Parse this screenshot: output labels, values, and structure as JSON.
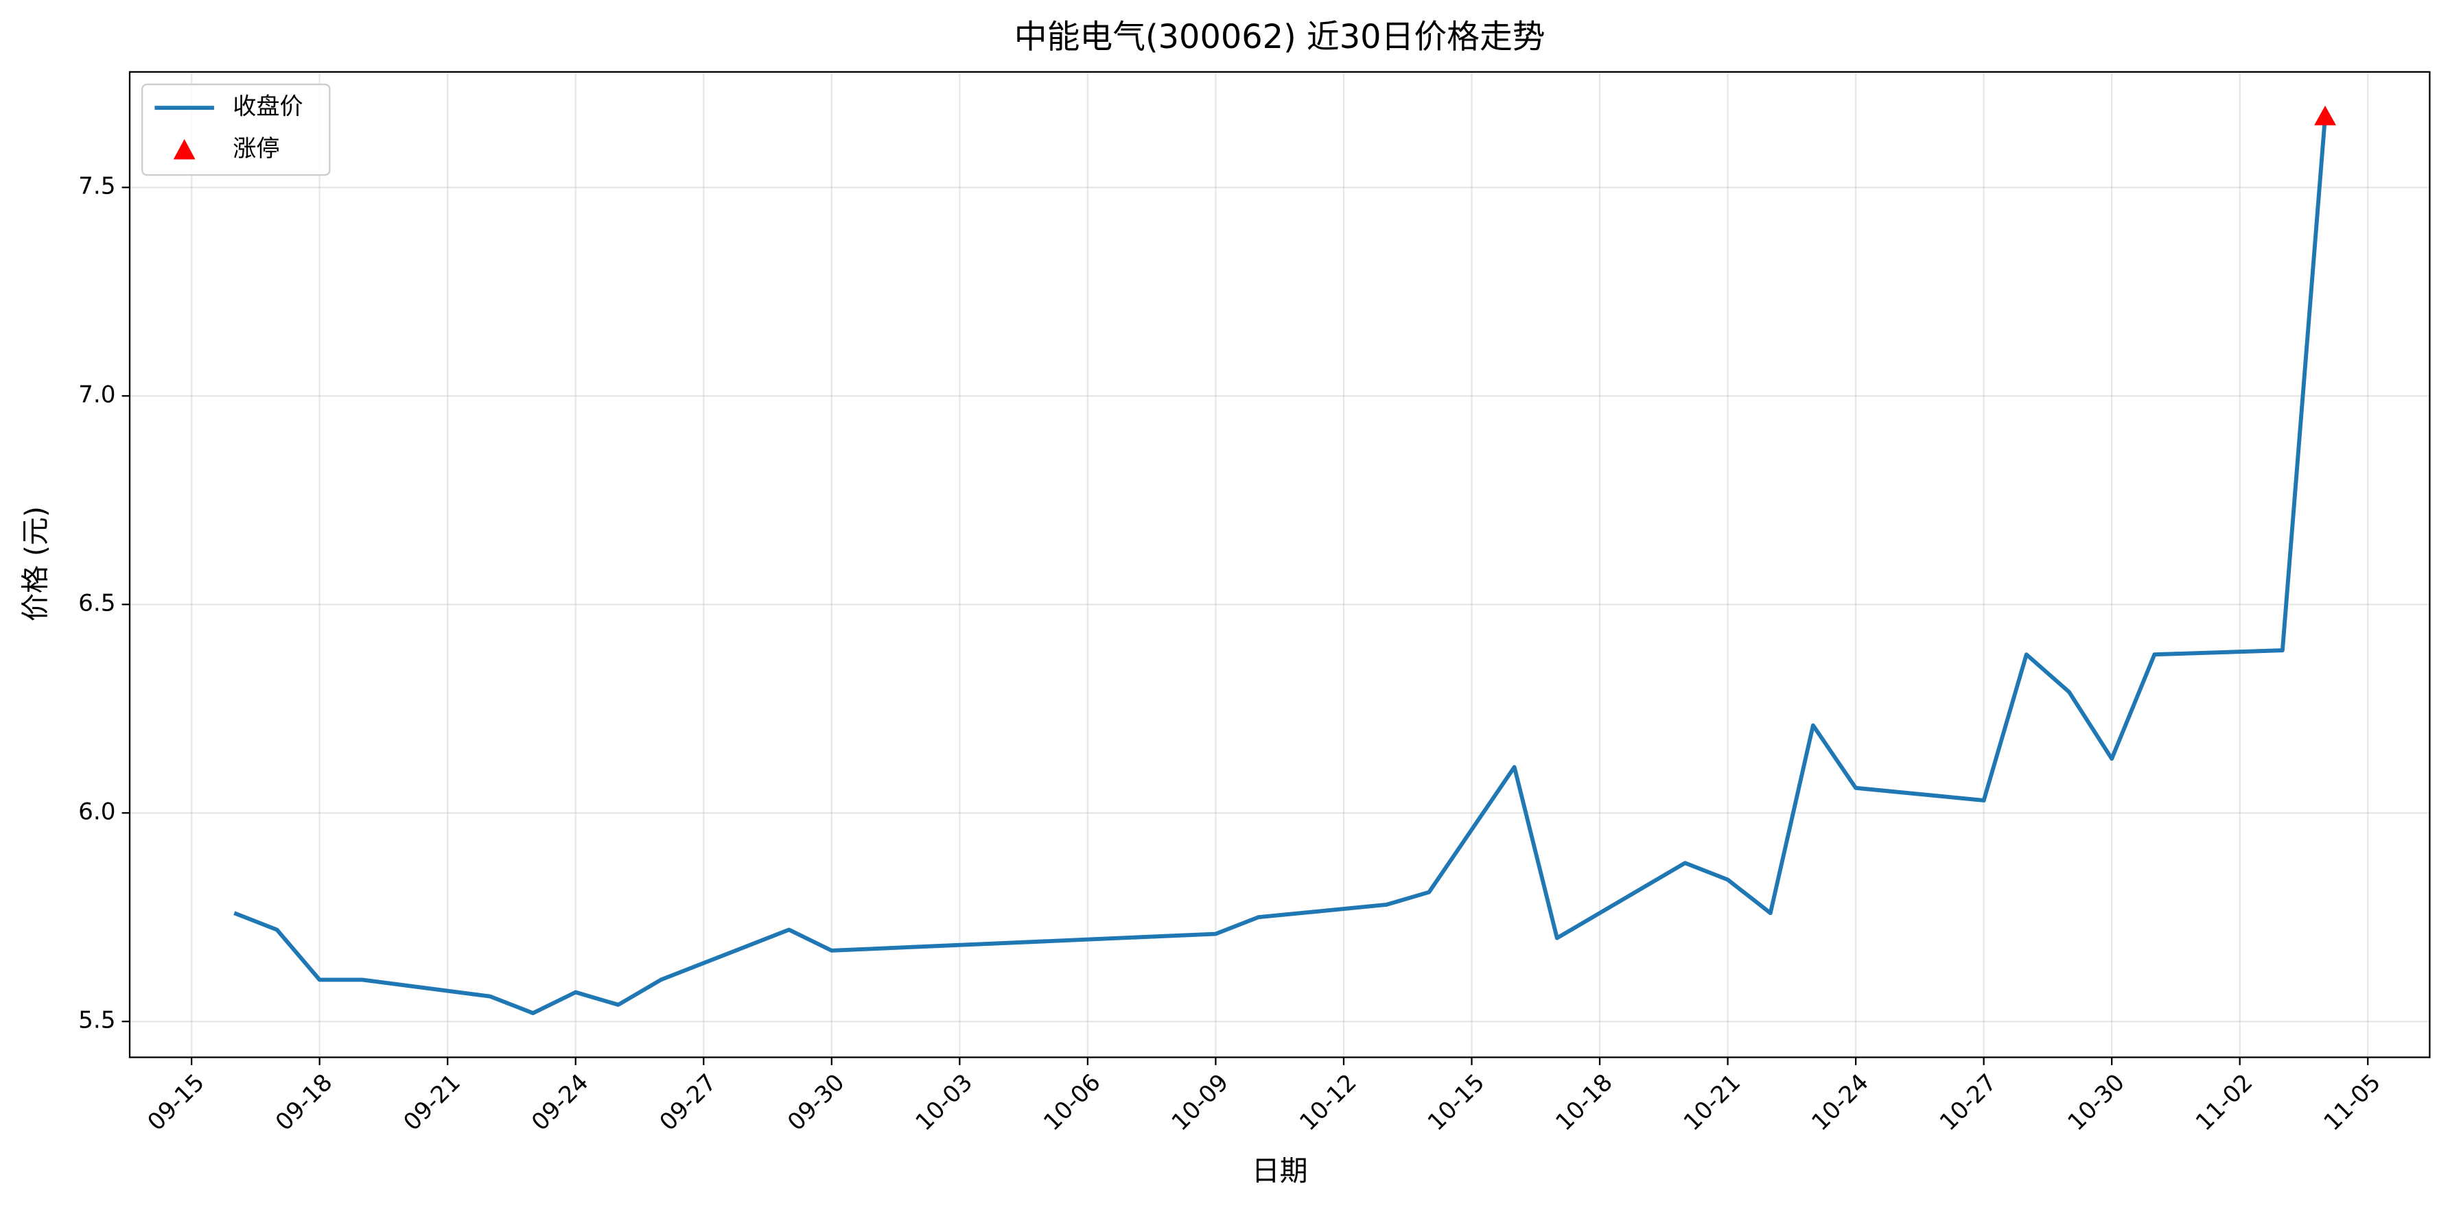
{
  "chart_data": {
    "type": "line",
    "title": "中能电气(300062) 近30日价格走势",
    "xlabel": "日期",
    "ylabel": "价格 (元)",
    "x": [
      "09-16",
      "09-17",
      "09-18",
      "09-19",
      "09-22",
      "09-23",
      "09-24",
      "09-25",
      "09-26",
      "09-29",
      "09-30",
      "10-09",
      "10-10",
      "10-13",
      "10-14",
      "10-16",
      "10-17",
      "10-20",
      "10-21",
      "10-22",
      "10-23",
      "10-24",
      "10-27",
      "10-28",
      "10-29",
      "10-30",
      "10-31",
      "11-03",
      "11-04"
    ],
    "series": [
      {
        "name": "收盘价",
        "color": "#1f77b4",
        "values": [
          5.76,
          5.72,
          5.6,
          5.6,
          5.56,
          5.52,
          5.57,
          5.54,
          5.6,
          5.72,
          5.67,
          5.71,
          5.75,
          5.78,
          5.81,
          6.11,
          5.7,
          5.88,
          5.84,
          5.76,
          6.21,
          6.06,
          6.03,
          6.38,
          6.29,
          6.13,
          6.38,
          6.39,
          7.67
        ]
      },
      {
        "name": "涨停",
        "type": "scatter",
        "marker": "triangle",
        "color": "#ff0000",
        "x": [
          "11-04"
        ],
        "values": [
          7.67
        ]
      }
    ],
    "ylim": [
      5.414,
      7.777
    ],
    "yticks": [
      5.5,
      {
        "value": 6,
        "label": "6.0"
      },
      6.5,
      {
        "value": 7,
        "label": "7.0"
      },
      7.5
    ],
    "xticks": [
      "09-15",
      "09-18",
      "09-21",
      "09-24",
      "09-27",
      "09-30",
      "10-03",
      "10-06",
      "10-09",
      "10-12",
      "10-15",
      "10-18",
      "10-21",
      "10-24",
      "10-27",
      "10-30",
      "11-02",
      "11-05"
    ],
    "grid": true,
    "legend": "upper left"
  }
}
